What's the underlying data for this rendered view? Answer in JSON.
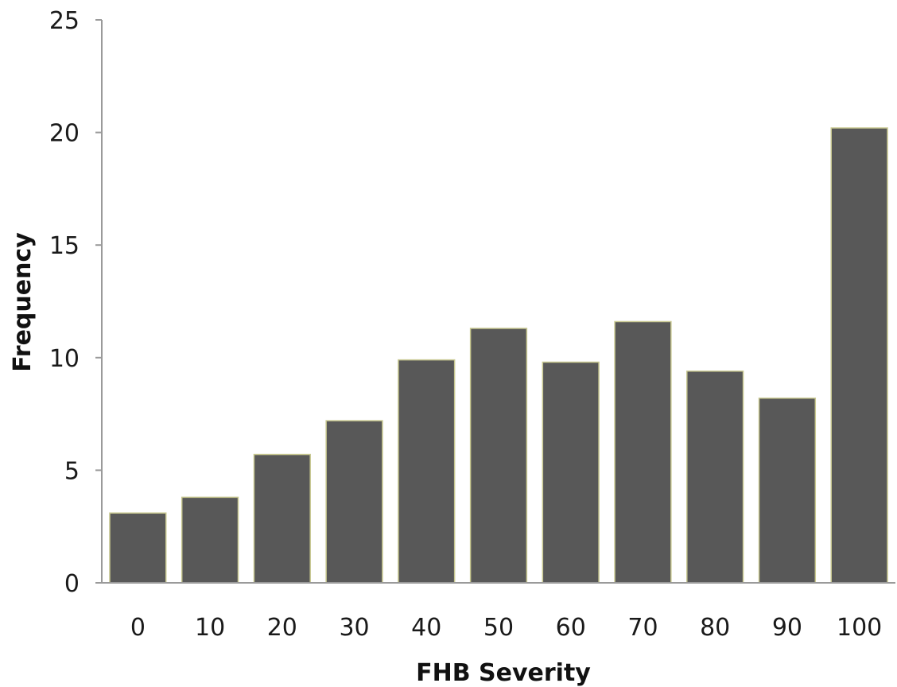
{
  "chart_data": {
    "type": "bar",
    "categories": [
      "0",
      "10",
      "20",
      "30",
      "40",
      "50",
      "60",
      "70",
      "80",
      "90",
      "100"
    ],
    "values": [
      3.1,
      3.8,
      5.7,
      7.2,
      9.9,
      11.3,
      9.8,
      11.6,
      9.4,
      8.2,
      20.2
    ],
    "xlabel": "FHB Severity",
    "ylabel": "Frequency",
    "ylim": [
      0,
      25
    ],
    "yticks": [
      0,
      5,
      10,
      15,
      20,
      25
    ],
    "grid": false,
    "legend": "none",
    "colors": {
      "bar": "#585858",
      "bar_edge": "#c8c890",
      "axis": "#9a9a9a",
      "text": "#1a1a1a"
    }
  }
}
